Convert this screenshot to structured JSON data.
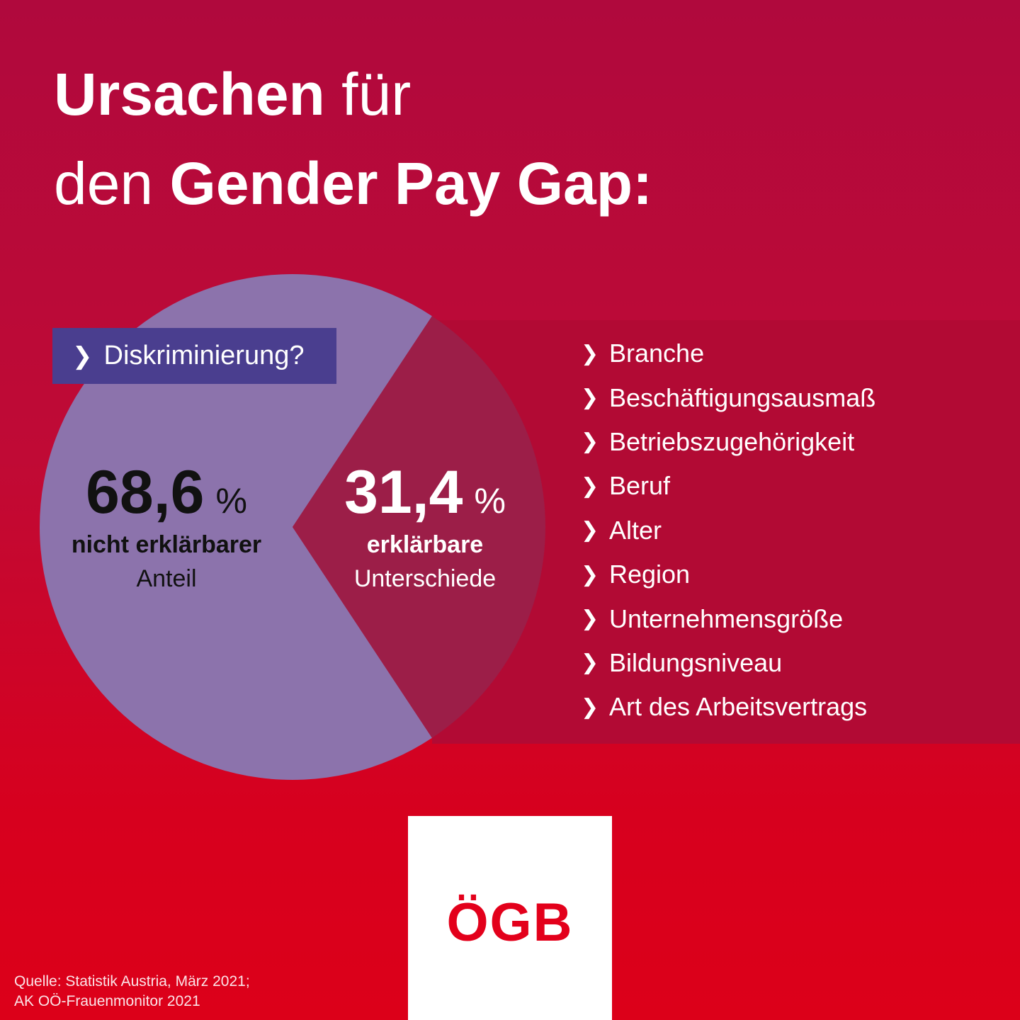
{
  "title": {
    "line1_bold": "Ursachen",
    "line1_regular": " für",
    "line2_regular": "den ",
    "line2_bold": "Gender Pay Gap:"
  },
  "badge": {
    "label": "Diskriminierung?",
    "color": "#4a3e8f"
  },
  "chart_data": {
    "type": "pie",
    "unit": "%",
    "slices": [
      {
        "value": 68.6,
        "value_label": "68,6",
        "label_bold": "nicht erklärbarer",
        "label_regular": "Anteil",
        "color": "#8c73ac"
      },
      {
        "value": 31.4,
        "value_label": "31,4",
        "label_bold": "erklärbare",
        "label_regular": "Unterschiede",
        "color": "#9c1e48"
      }
    ]
  },
  "factors": [
    "Branche",
    "Beschäftigungsausmaß",
    "Betriebszugehörigkeit",
    "Beruf",
    "Alter",
    "Region",
    "Unternehmensgröße",
    "Bildungsniveau",
    "Art des Arbeitsvertrags"
  ],
  "logo": {
    "text": "ÖGB"
  },
  "source": {
    "line1": "Quelle: Statistik Austria, März 2021;",
    "line2": "AK OÖ-Frauenmonitor 2021"
  },
  "colors": {
    "background_top": "#b0093d",
    "background_bottom": "#dc0019",
    "list_band": "#b20a34",
    "logo_red": "#e3001b"
  }
}
